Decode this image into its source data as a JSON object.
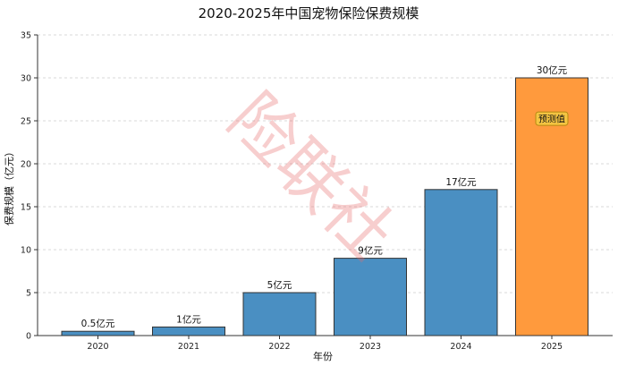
{
  "chart_data": {
    "type": "bar",
    "title": "2020-2025年中国宠物保险保费规模",
    "xlabel": "年份",
    "ylabel": "保费规模（亿元）",
    "categories": [
      "2020",
      "2021",
      "2022",
      "2023",
      "2024",
      "2025"
    ],
    "values": [
      0.5,
      1,
      5,
      9,
      17,
      30
    ],
    "data_labels": [
      "0.5亿元",
      "1亿元",
      "5亿元",
      "9亿元",
      "17亿元",
      "30亿元"
    ],
    "ylim": [
      0,
      35
    ],
    "yticks": [
      0,
      5,
      10,
      15,
      20,
      25,
      30,
      35
    ],
    "grid": true,
    "colors": {
      "actual": "#4a8fc2",
      "forecast": "#ff9a3d",
      "edge": "#333333",
      "note_fill": "#f5c542",
      "note_edge": "#b58a10"
    },
    "forecast_index": 5,
    "annotation": "预测值",
    "watermark": "险联社"
  }
}
